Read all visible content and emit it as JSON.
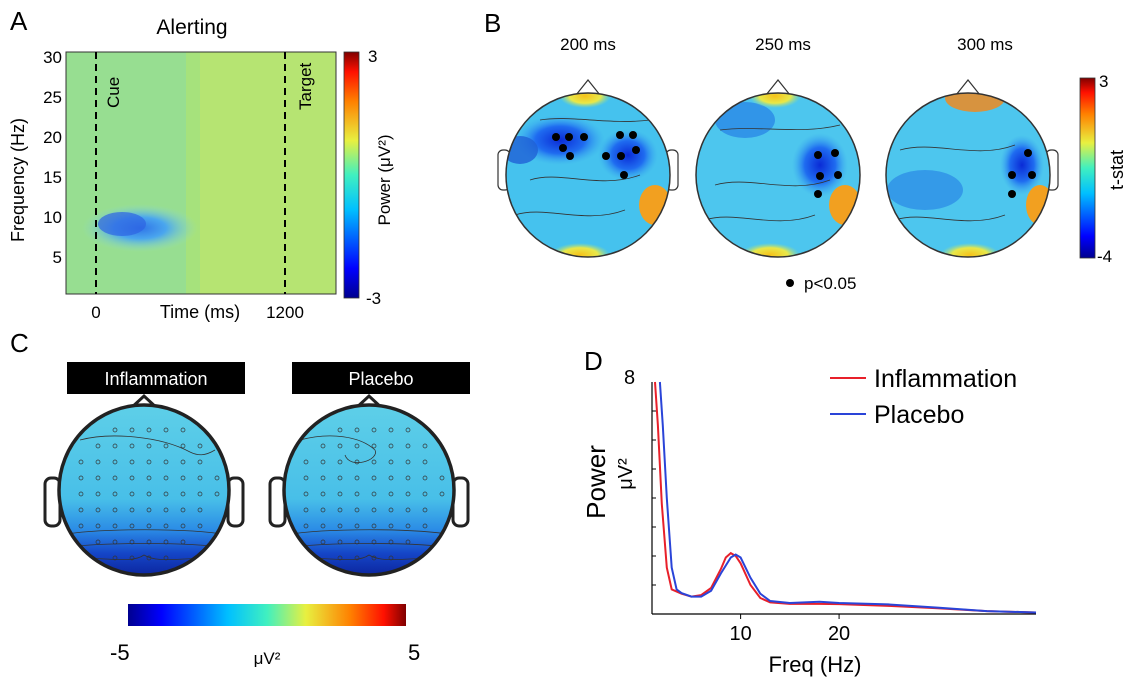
{
  "panels": {
    "a": {
      "letter": "A",
      "title": "Alerting",
      "ylabel": "Frequency (Hz)",
      "xlabel": "Time (ms)",
      "yticks": [
        "30",
        "25",
        "20",
        "15",
        "10",
        "5"
      ],
      "xticks": [
        "0",
        "1200"
      ],
      "cue_label": "Cue",
      "target_label": "Target",
      "colorbar_label": "Power (μV²)",
      "colorbar_max": "3",
      "colorbar_min": "-3"
    },
    "b": {
      "letter": "B",
      "times": [
        "200 ms",
        "250 ms",
        "300 ms"
      ],
      "sig_label": "p<0.05",
      "colorbar_label": "t-stat",
      "colorbar_max": "3",
      "colorbar_min": "-4"
    },
    "c": {
      "letter": "C",
      "conditions": [
        "Inflammation",
        "Placebo"
      ],
      "colorbar_min": "-5",
      "colorbar_max": "5",
      "colorbar_unit": "μV²"
    }
  },
  "chart_data": {
    "type": "line",
    "panel_letter": "D",
    "xlabel": "Freq (Hz)",
    "ylabel": "Power",
    "yunit": "μV²",
    "ytick_label": "8",
    "xticks": [
      10,
      20
    ],
    "xlim": [
      1,
      40
    ],
    "ylim": [
      0,
      8
    ],
    "grid": false,
    "legend_position": "top-right",
    "series": [
      {
        "name": "Inflammation",
        "color": "#e8202a",
        "x": [
          1.3,
          1.6,
          2,
          2.5,
          3,
          4,
          5,
          6,
          7,
          8,
          8.5,
          9,
          9.5,
          10,
          11,
          12,
          13,
          15,
          18,
          20,
          25,
          30,
          35,
          40
        ],
        "y": [
          8,
          6.5,
          3.8,
          1.6,
          0.85,
          0.7,
          0.6,
          0.65,
          0.9,
          1.55,
          1.95,
          2.1,
          2.0,
          1.75,
          1.0,
          0.55,
          0.4,
          0.35,
          0.35,
          0.34,
          0.28,
          0.2,
          0.1,
          0.05
        ]
      },
      {
        "name": "Placebo",
        "color": "#2a44d8",
        "x": [
          1.8,
          2.1,
          2.5,
          3,
          3.5,
          4,
          5,
          6,
          7,
          8,
          9,
          9.5,
          10,
          11,
          12,
          13,
          15,
          18,
          20,
          25,
          30,
          35,
          40
        ],
        "y": [
          8,
          6.5,
          4.0,
          1.6,
          0.85,
          0.72,
          0.6,
          0.6,
          0.8,
          1.4,
          1.95,
          2.05,
          1.95,
          1.25,
          0.7,
          0.45,
          0.38,
          0.42,
          0.38,
          0.33,
          0.22,
          0.1,
          0.05
        ]
      }
    ]
  },
  "colors": {
    "jet_dark_blue": "#00008f",
    "jet_red": "#800000",
    "head_fill_base": "#45b5e6"
  }
}
